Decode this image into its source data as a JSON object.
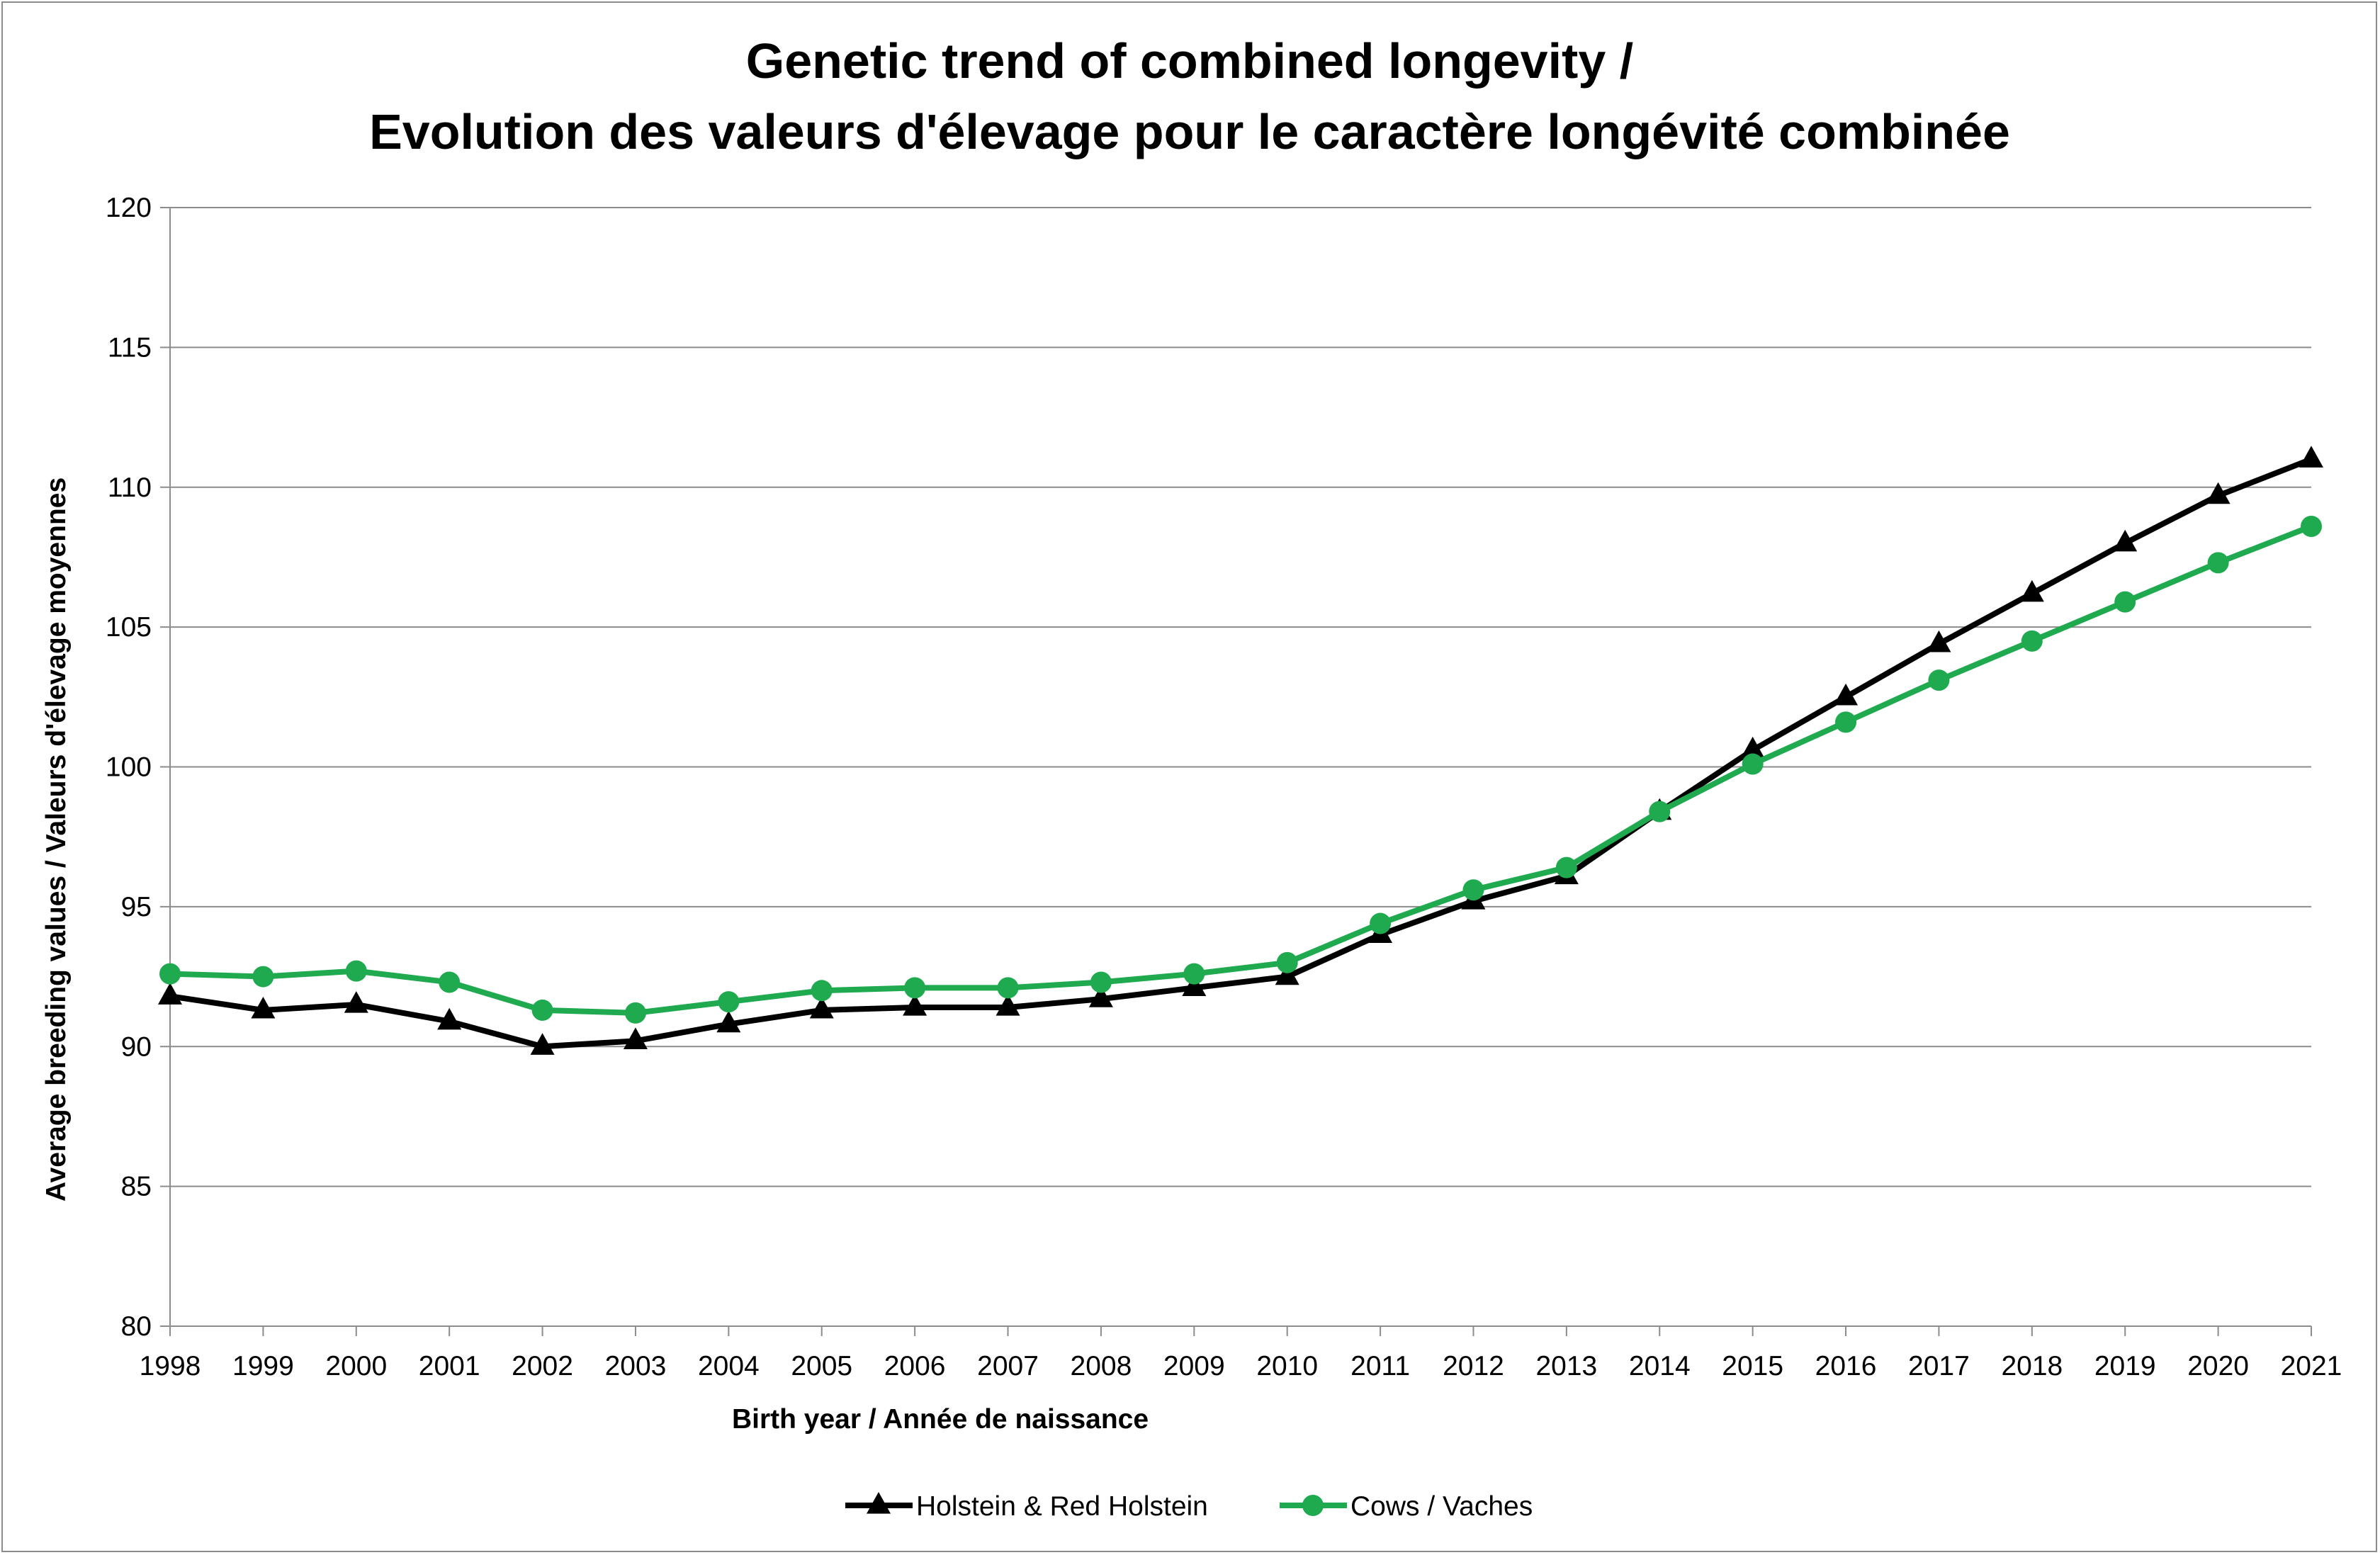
{
  "chart_data": {
    "type": "line",
    "title": "Genetic trend of combined longevity /",
    "subtitle": "Evolution des valeurs d'élevage pour le caractère longévité combinée",
    "xlabel": "Birth year / Année de naissance",
    "ylabel": "Average breeding values / Valeurs d'élevage moyennes",
    "ylim": [
      80,
      120
    ],
    "yticks": [
      "80",
      "85",
      "90",
      "95",
      "100",
      "105",
      "110",
      "115",
      "120"
    ],
    "grid": true,
    "legend_position": "bottom",
    "categories": [
      "1998",
      "1999",
      "2000",
      "2001",
      "2002",
      "2003",
      "2004",
      "2005",
      "2006",
      "2007",
      "2008",
      "2009",
      "2010",
      "2011",
      "2012",
      "2013",
      "2014",
      "2015",
      "2016",
      "2017",
      "2018",
      "2019",
      "2020",
      "2021"
    ],
    "series": [
      {
        "name": "Holstein & Red Holstein",
        "color": "#000000",
        "marker": "triangle",
        "values": [
          91.8,
          91.3,
          91.5,
          90.9,
          90.0,
          90.2,
          90.8,
          91.3,
          91.4,
          91.4,
          91.7,
          92.1,
          92.5,
          94.0,
          95.2,
          96.1,
          98.4,
          100.6,
          102.5,
          104.4,
          106.2,
          108.0,
          109.7,
          111.0
        ]
      },
      {
        "name": "Cows / Vaches",
        "color": "#1faa4f",
        "marker": "circle",
        "values": [
          92.6,
          92.5,
          92.7,
          92.3,
          91.3,
          91.2,
          91.6,
          92.0,
          92.1,
          92.1,
          92.3,
          92.6,
          93.0,
          94.4,
          95.6,
          96.4,
          98.4,
          100.1,
          101.6,
          103.1,
          104.5,
          105.9,
          107.3,
          108.6
        ]
      }
    ]
  }
}
